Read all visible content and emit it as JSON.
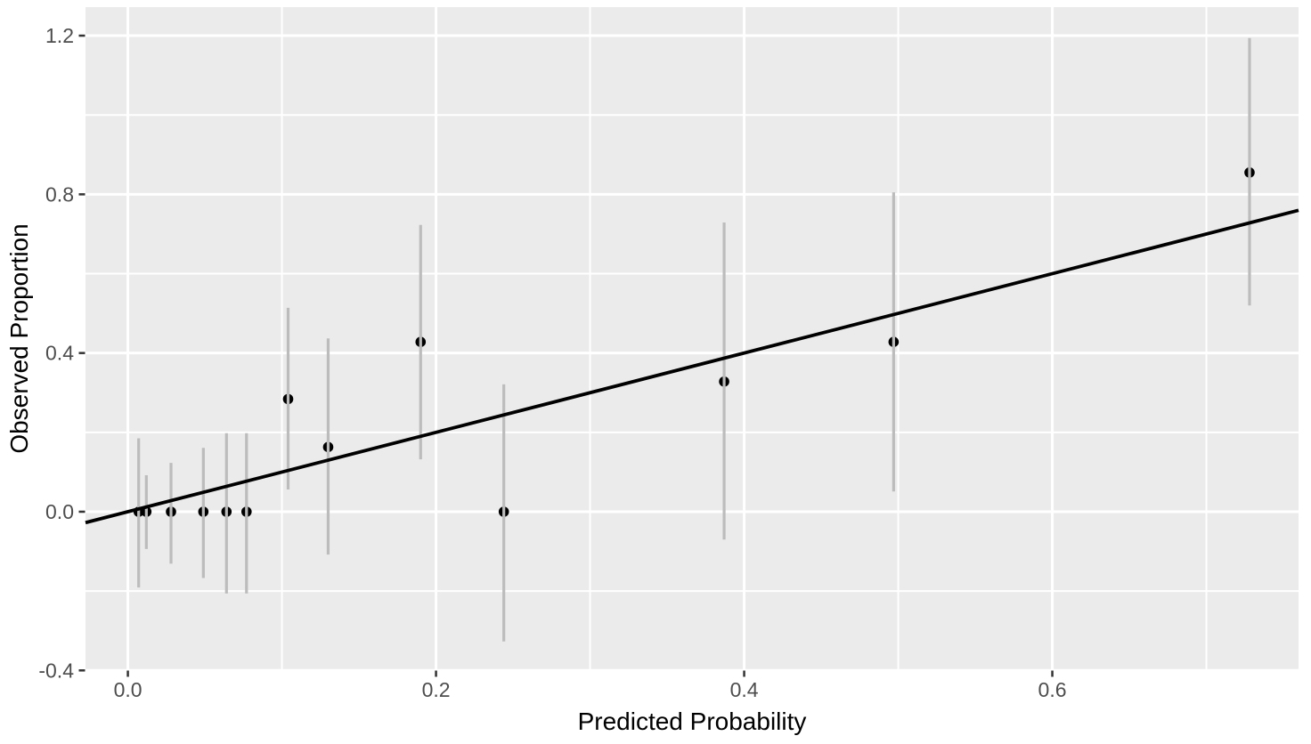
{
  "figure": {
    "background": "#FFFFFF"
  },
  "chart_data": {
    "type": "scatter",
    "title": "",
    "xlabel": "Predicted Probability",
    "ylabel": "Observed Proportion",
    "xlim": [
      -0.0275,
      0.7598
    ],
    "ylim": [
      -0.3993,
      1.2719
    ],
    "grid": true,
    "legend": "none",
    "panel_background": "#EBEBEB",
    "grid_color": "#FFFFFF",
    "x_major_ticks": {
      "values": [
        0.0,
        0.2,
        0.4,
        0.6
      ],
      "labels": [
        "0.0",
        "0.2",
        "0.4",
        "0.6"
      ]
    },
    "y_major_ticks": {
      "values": [
        -0.4,
        0.0,
        0.4,
        0.8,
        1.2
      ],
      "labels": [
        "-0.4",
        "0.0",
        "0.4",
        "0.8",
        "1.2"
      ]
    },
    "x_minor_ticks": [
      0.1,
      0.3,
      0.5,
      0.7
    ],
    "y_minor_ticks": [
      -0.2,
      0.2,
      0.6,
      1.0
    ],
    "reference_line": {
      "type": "identity",
      "slope": 1,
      "intercept": 0,
      "color": "#000000"
    },
    "series": [
      {
        "name": "calibration-points",
        "point_color": "#000000",
        "errorbar_color": "#BCBCBC",
        "points": [
          {
            "x": 0.007,
            "y": 0.0,
            "ci_low": -0.191,
            "ci_high": 0.185
          },
          {
            "x": 0.012,
            "y": 0.0,
            "ci_low": -0.094,
            "ci_high": 0.092
          },
          {
            "x": 0.028,
            "y": 0.0,
            "ci_low": -0.131,
            "ci_high": 0.123
          },
          {
            "x": 0.049,
            "y": 0.0,
            "ci_low": -0.167,
            "ci_high": 0.161
          },
          {
            "x": 0.064,
            "y": 0.0,
            "ci_low": -0.206,
            "ci_high": 0.198
          },
          {
            "x": 0.077,
            "y": 0.0,
            "ci_low": -0.206,
            "ci_high": 0.198
          },
          {
            "x": 0.104,
            "y": 0.284,
            "ci_low": 0.056,
            "ci_high": 0.514
          },
          {
            "x": 0.13,
            "y": 0.163,
            "ci_low": -0.108,
            "ci_high": 0.437
          },
          {
            "x": 0.19,
            "y": 0.428,
            "ci_low": 0.132,
            "ci_high": 0.723
          },
          {
            "x": 0.244,
            "y": 0.0,
            "ci_low": -0.327,
            "ci_high": 0.321
          },
          {
            "x": 0.387,
            "y": 0.328,
            "ci_low": -0.07,
            "ci_high": 0.729
          },
          {
            "x": 0.497,
            "y": 0.428,
            "ci_low": 0.051,
            "ci_high": 0.805
          },
          {
            "x": 0.728,
            "y": 0.855,
            "ci_low": 0.52,
            "ci_high": 1.194
          }
        ]
      }
    ],
    "style": {
      "tick_label_color": "#4D4D4D",
      "tick_mark_color": "#333333",
      "axis_title_color": "#000000"
    }
  }
}
